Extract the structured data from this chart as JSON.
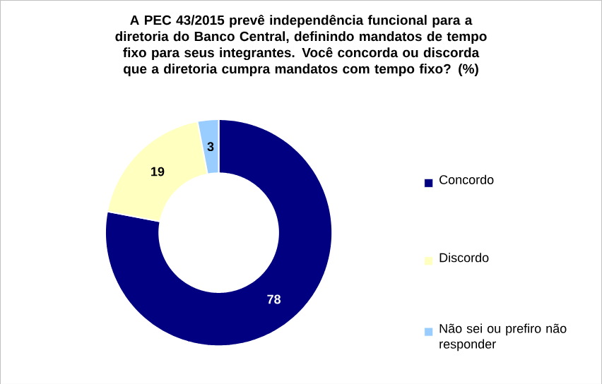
{
  "chart_data": {
    "type": "donut",
    "title": "A PEC 43/2015 prevê independência funcional para a diretoria do Banco Central, definindo mandatos de tempo fixo para seus integrantes. Você concorda ou discorda que a diretoria cumpra mandatos com tempo fixo? (%)",
    "categories": [
      "Concordo",
      "Discordo",
      "Não sei ou prefiro não responder"
    ],
    "values": [
      78,
      19,
      3
    ],
    "colors": [
      "#000080",
      "#ffffc0",
      "#99ccff"
    ],
    "data_labels": true,
    "legend": "right"
  }
}
